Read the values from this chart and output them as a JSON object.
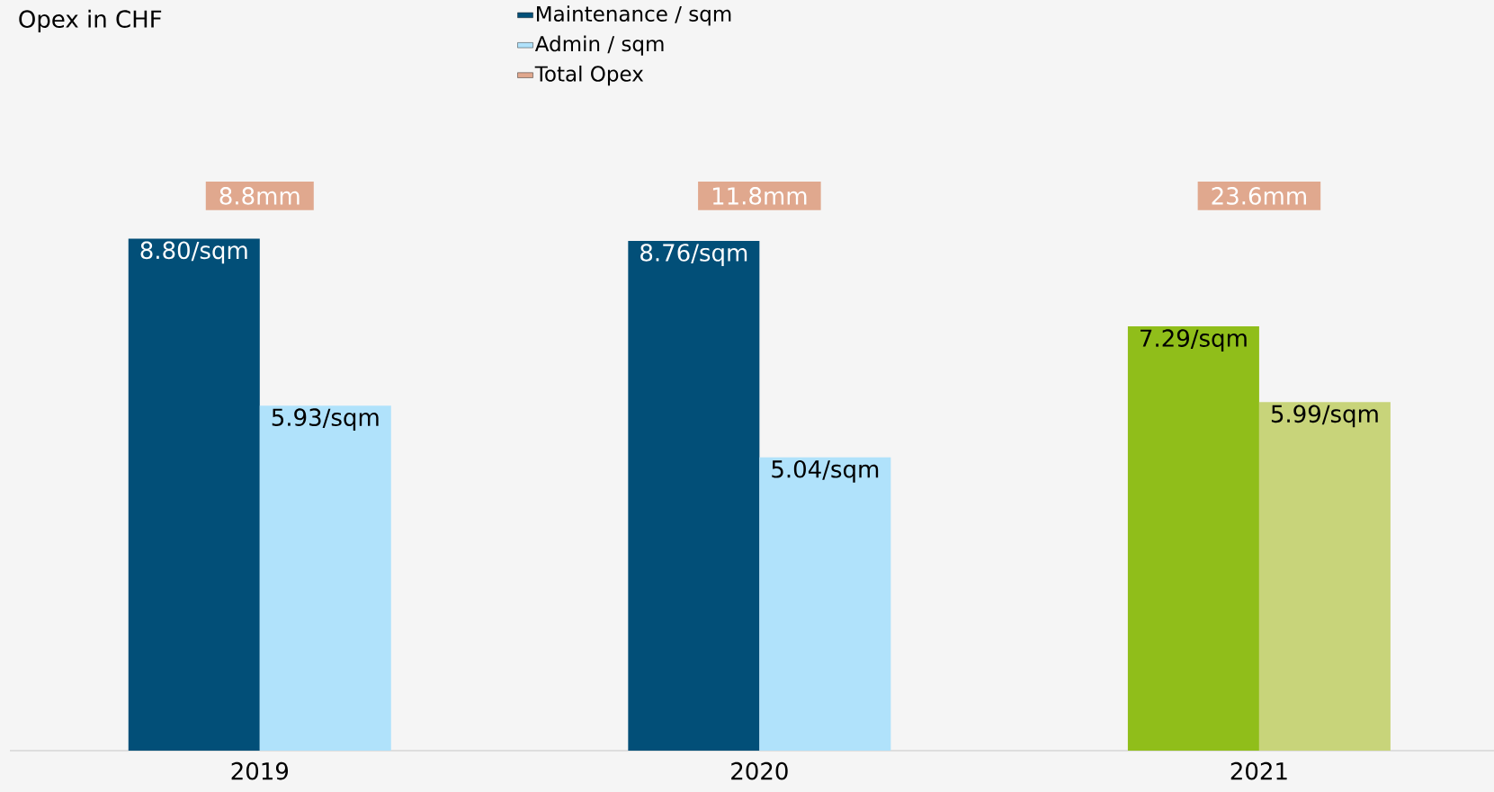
{
  "chart_data": {
    "type": "bar",
    "title": "Opex in CHF",
    "categories": [
      "2019",
      "2020",
      "2021"
    ],
    "series": [
      {
        "name": "Maintenance / sqm",
        "color": "#024f78",
        "colors": [
          "#024f78",
          "#024f78",
          "#90be1a"
        ],
        "values": [
          8.8,
          8.76,
          7.29
        ],
        "value_labels": [
          "8.80/sqm",
          "8.76/sqm",
          "7.29/sqm"
        ]
      },
      {
        "name": "Admin / sqm",
        "color": "#b0e2fb",
        "colors": [
          "#b0e2fb",
          "#b0e2fb",
          "#c8d47a"
        ],
        "values": [
          5.93,
          5.04,
          5.99
        ],
        "value_labels": [
          "5.93/sqm",
          "5.04/sqm",
          "5.99/sqm"
        ]
      },
      {
        "name": "Total Opex",
        "color": "#e0a88e",
        "values": [
          null,
          null,
          null
        ]
      }
    ],
    "annotations": [
      "8.8mm",
      "11.8mm",
      "23.6mm"
    ],
    "ylim": [
      0,
      12.9
    ],
    "legend": "top"
  }
}
